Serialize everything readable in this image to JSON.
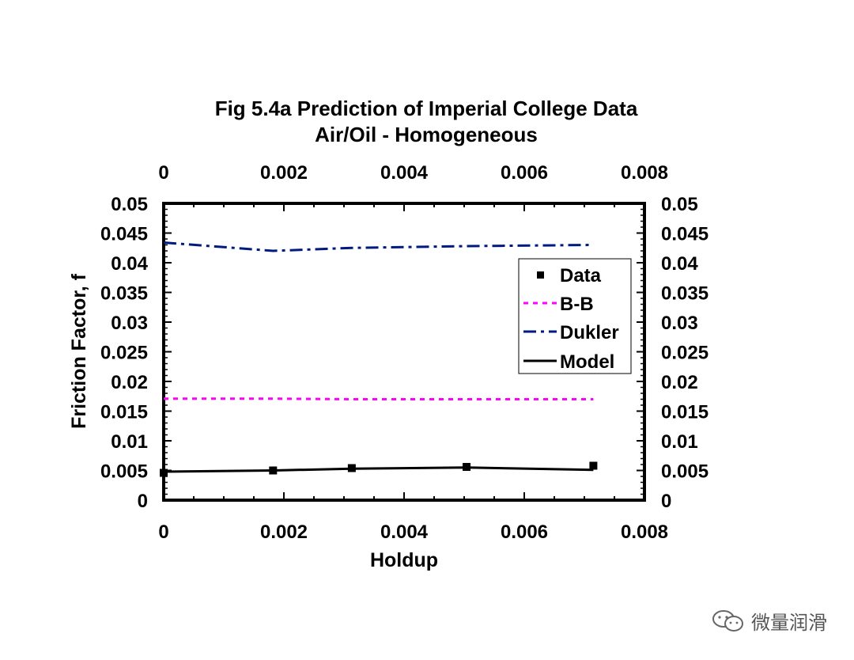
{
  "chart_data": {
    "type": "line",
    "title_line1": "Fig 5.4a Prediction of Imperial College Data",
    "title_line2": "Air/Oil - Homogeneous",
    "xlabel": "Holdup",
    "ylabel": "Friction Factor, f",
    "xlim": [
      0,
      0.008
    ],
    "ylim": [
      0,
      0.05
    ],
    "x_ticks": [
      "0",
      "0.002",
      "0.004",
      "0.006",
      "0.008"
    ],
    "y_ticks": [
      "0",
      "0.005",
      "0.01",
      "0.015",
      "0.02",
      "0.025",
      "0.03",
      "0.035",
      "0.04",
      "0.045",
      "0.05"
    ],
    "grid": false,
    "legend_position": "right",
    "series": [
      {
        "name": "Data",
        "style": "markers",
        "color": "#000000",
        "x": [
          0.0,
          0.00182,
          0.00313,
          0.00504,
          0.00715
        ],
        "y": [
          0.0046,
          0.005,
          0.0054,
          0.0056,
          0.0058
        ]
      },
      {
        "name": "B-B",
        "style": "dotted",
        "color": "#ff00ff",
        "x": [
          0.0,
          0.00182,
          0.00313,
          0.00504,
          0.00715
        ],
        "y": [
          0.0171,
          0.0171,
          0.017,
          0.017,
          0.017
        ]
      },
      {
        "name": "Dukler",
        "style": "dashdot",
        "color": "#001a80",
        "x": [
          0.0,
          0.00182,
          0.00313,
          0.00504,
          0.00715
        ],
        "y": [
          0.0434,
          0.042,
          0.0425,
          0.0428,
          0.043
        ]
      },
      {
        "name": "Model",
        "style": "solid",
        "color": "#000000",
        "x": [
          0.0,
          0.00182,
          0.00313,
          0.00504,
          0.00715
        ],
        "y": [
          0.0048,
          0.005,
          0.0053,
          0.0055,
          0.0051
        ]
      }
    ]
  },
  "watermark": {
    "icon": "wechat-icon",
    "text": "微量润滑"
  }
}
